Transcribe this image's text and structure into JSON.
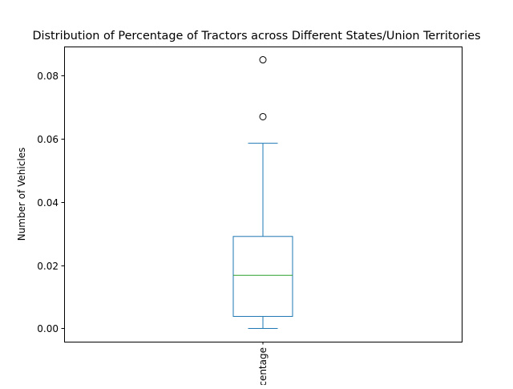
{
  "chart_data": {
    "type": "box",
    "title": "Distribution of Percentage of Tractors across Different States/Union Territories",
    "xlabel": "",
    "ylabel": "Number of Vehicles",
    "categories": [
      "Percentage"
    ],
    "category_label_visible": "entage",
    "ylim": [
      -0.0042,
      0.0892
    ],
    "yticks": [
      0.0,
      0.02,
      0.04,
      0.06,
      0.08
    ],
    "ytick_labels": [
      "0.00",
      "0.02",
      "0.04",
      "0.06",
      "0.08"
    ],
    "grid": false,
    "legend": "none",
    "boxes": [
      {
        "name": "Percentage",
        "whisker_low": 0.0,
        "q1": 0.0038,
        "median": 0.0168,
        "q3": 0.0291,
        "whisker_high": 0.0586,
        "outliers": [
          0.067,
          0.085
        ]
      }
    ],
    "colors": {
      "box": "#1f77b4",
      "median": "#2ca02c",
      "outlier": "#000000",
      "axes": "#000000"
    }
  }
}
